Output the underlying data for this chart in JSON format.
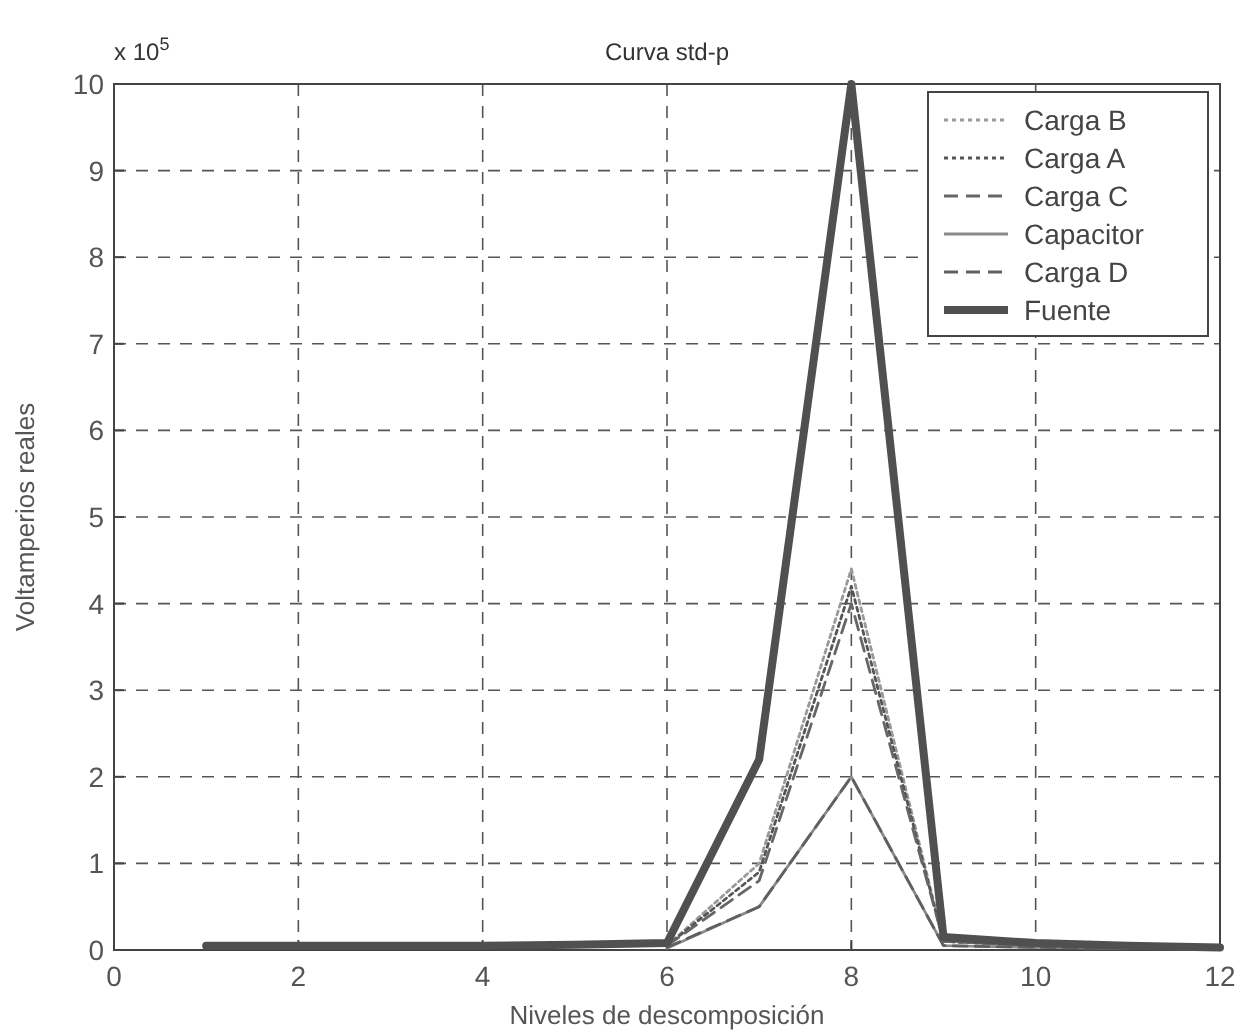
{
  "chart_data": {
    "type": "line",
    "title": "Curva std-p",
    "xlabel": "Niveles de descomposición",
    "ylabel": "Voltamperios reales",
    "annotations": [
      "x 10$^{5}$"
    ],
    "x": [
      1,
      2,
      3,
      4,
      5,
      6,
      7,
      8,
      9,
      10,
      11,
      12
    ],
    "series": [
      {
        "name": "Carga B",
        "color": "#9a9a9a",
        "line_style": "dotted",
        "values": [
          null,
          null,
          null,
          null,
          null,
          0.05,
          1.0,
          4.4,
          0.1,
          0.05,
          0.03,
          0.02
        ]
      },
      {
        "name": "Carga A",
        "color": "#555555",
        "line_style": "dotted",
        "values": [
          null,
          null,
          null,
          null,
          null,
          0.05,
          0.9,
          4.2,
          0.1,
          0.05,
          0.03,
          0.02
        ]
      },
      {
        "name": "Carga C",
        "color": "#666666",
        "line_style": "dashed",
        "values": [
          null,
          null,
          null,
          null,
          null,
          0.05,
          0.8,
          4.0,
          0.1,
          0.05,
          0.03,
          0.02
        ]
      },
      {
        "name": "Capacitor",
        "color": "#8a8a8a",
        "line_style": "solid",
        "values": [
          null,
          null,
          null,
          null,
          null,
          0.02,
          0.5,
          2.0,
          0.05,
          0.03,
          0.02,
          0.01
        ]
      },
      {
        "name": "Carga D",
        "color": "#606060",
        "line_style": "dashed",
        "values": [
          null,
          null,
          null,
          null,
          null,
          0.03,
          0.5,
          2.0,
          0.05,
          0.03,
          0.02,
          0.01
        ]
      },
      {
        "name": "Fuente",
        "color": "#505050",
        "line_style": "solid",
        "values": [
          0.05,
          0.05,
          0.05,
          0.05,
          0.06,
          0.08,
          2.2,
          10,
          0.15,
          0.08,
          0.05,
          0.03
        ]
      }
    ],
    "xlim": [
      0,
      12
    ],
    "xticks": [
      0,
      2,
      4,
      6,
      8,
      10,
      12
    ],
    "ylim": [
      0,
      10
    ],
    "yticks": [
      0,
      1,
      2,
      3,
      4,
      5,
      6,
      7,
      8,
      9,
      10
    ],
    "grid": true,
    "legend": "top right",
    "marker": "none"
  }
}
